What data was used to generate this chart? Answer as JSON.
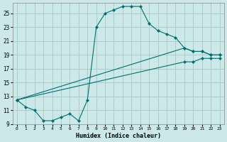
{
  "xlabel": "Humidex (Indice chaleur)",
  "bg_color": "#cce8e8",
  "grid_color": "#aacccc",
  "line_color": "#007070",
  "xlim": [
    -0.5,
    23.5
  ],
  "ylim": [
    9,
    26.5
  ],
  "yticks": [
    9,
    11,
    13,
    15,
    17,
    19,
    21,
    23,
    25
  ],
  "xticks": [
    0,
    1,
    2,
    3,
    4,
    5,
    6,
    7,
    8,
    9,
    10,
    11,
    12,
    13,
    14,
    15,
    16,
    17,
    18,
    19,
    20,
    21,
    22,
    23
  ],
  "line1_x": [
    0,
    1,
    2,
    3,
    4,
    5,
    6,
    7,
    8,
    9,
    10,
    11,
    12,
    13,
    14,
    15,
    16,
    17,
    18,
    19,
    20,
    21,
    22,
    23
  ],
  "line1_y": [
    12.5,
    11.5,
    11.0,
    9.5,
    9.5,
    10.0,
    10.5,
    9.5,
    12.5,
    23.0,
    25.0,
    25.5,
    26.0,
    26.0,
    26.0,
    23.5,
    22.5,
    22.0,
    21.5,
    20.0,
    19.5,
    19.5,
    19.0,
    19.0
  ],
  "line2_x": [
    0,
    19,
    20,
    21,
    22,
    23
  ],
  "line2_y": [
    12.5,
    20.0,
    19.5,
    19.5,
    19.0,
    19.0
  ],
  "line3_x": [
    0,
    19,
    20,
    21,
    22,
    23
  ],
  "line3_y": [
    12.5,
    18.0,
    18.0,
    18.5,
    18.5,
    18.5
  ]
}
